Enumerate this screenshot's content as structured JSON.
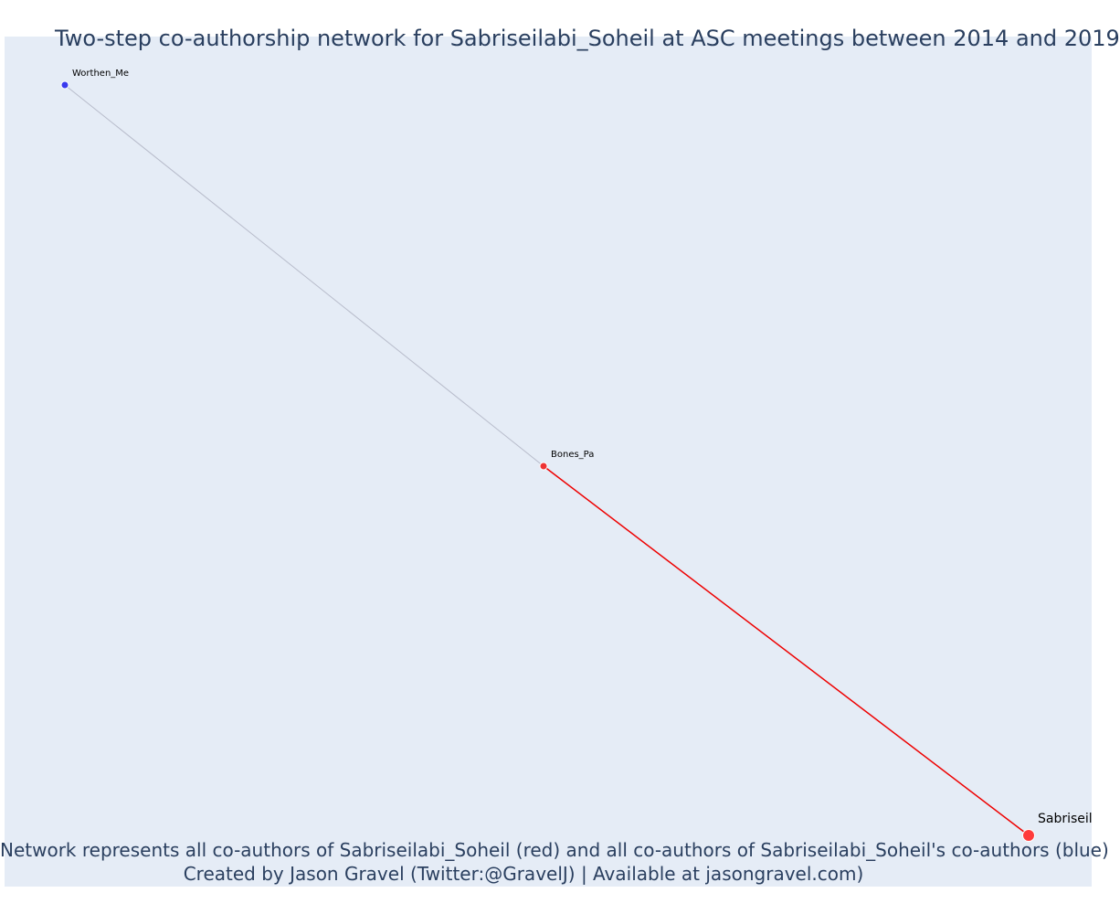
{
  "title": "Two-step co-authorship network for Sabriseilabi_Soheil at ASC meetings between 2014 and 2019",
  "caption": {
    "line1": "Network represents all co-authors of Sabriseilabi_Soheil (red) and all co-authors of Sabriseilabi_Soheil's co-authors (blue)",
    "line2": "Created by Jason Gravel (Twitter:@GravelJ) | Available at jasongravel.com)"
  },
  "colors": {
    "ego": "#ff3b3b",
    "coauthor": "#ee3333",
    "second_step": "#3a3aee",
    "red_edge": "#ee0000",
    "grey_edge": "#b8bccb",
    "background": "#e5ecf6"
  },
  "network": {
    "nodes": [
      {
        "id": "Worthen_Me",
        "label": "Worthen_Me",
        "group": "second_step"
      },
      {
        "id": "Bones_Pa",
        "label": "Bones_Pa",
        "group": "coauthor"
      },
      {
        "id": "Sabriseilabi_Soheil",
        "label": "Sabriseil",
        "group": "ego"
      }
    ],
    "edges": [
      {
        "source": "Worthen_Me",
        "target": "Bones_Pa",
        "type": "second_step"
      },
      {
        "source": "Bones_Pa",
        "target": "Sabriseilabi_Soheil",
        "type": "coauthor"
      }
    ]
  }
}
